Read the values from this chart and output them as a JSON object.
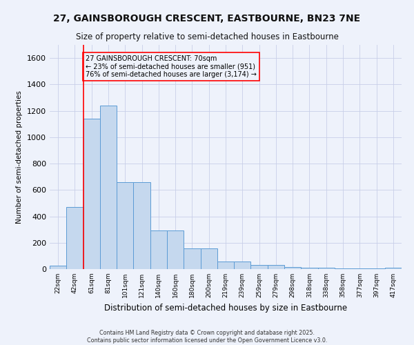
{
  "title": "27, GAINSBOROUGH CRESCENT, EASTBOURNE, BN23 7NE",
  "subtitle": "Size of property relative to semi-detached houses in Eastbourne",
  "xlabel": "Distribution of semi-detached houses by size in Eastbourne",
  "ylabel": "Number of semi-detached properties",
  "categories": [
    "22sqm",
    "42sqm",
    "61sqm",
    "81sqm",
    "101sqm",
    "121sqm",
    "140sqm",
    "160sqm",
    "180sqm",
    "200sqm",
    "219sqm",
    "239sqm",
    "259sqm",
    "279sqm",
    "298sqm",
    "318sqm",
    "338sqm",
    "358sqm",
    "377sqm",
    "397sqm",
    "417sqm"
  ],
  "values": [
    25,
    470,
    1140,
    1240,
    660,
    660,
    295,
    295,
    155,
    155,
    60,
    60,
    30,
    30,
    18,
    12,
    8,
    5,
    3,
    3,
    8
  ],
  "bar_color": "#c5d8ee",
  "bar_edge_color": "#5b9bd5",
  "background_color": "#eef2fb",
  "grid_color": "#c8cfe8",
  "vline_color": "red",
  "vline_x": 1.5,
  "annotation_title": "27 GAINSBOROUGH CRESCENT: 70sqm",
  "annotation_line1": "← 23% of semi-detached houses are smaller (951)",
  "annotation_line2": "76% of semi-detached houses are larger (3,174) →",
  "annotation_box_color": "red",
  "footnote1": "Contains HM Land Registry data © Crown copyright and database right 2025.",
  "footnote2": "Contains public sector information licensed under the Open Government Licence v3.0.",
  "ylim": [
    0,
    1700
  ],
  "yticks": [
    0,
    200,
    400,
    600,
    800,
    1000,
    1200,
    1400,
    1600
  ]
}
